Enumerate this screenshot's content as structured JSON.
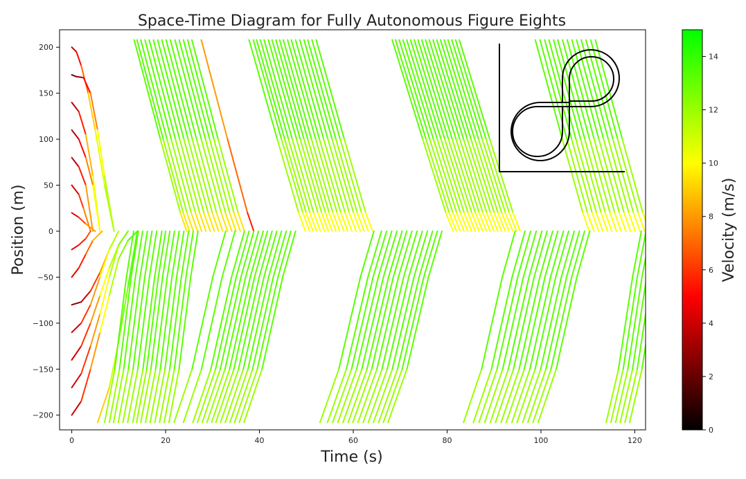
{
  "chart_data": {
    "type": "line",
    "title": "Space-Time Diagram for Fully Autonomous Figure Eights",
    "xlabel": "Time (s)",
    "ylabel": "Position (m)",
    "xlim": [
      -2.6,
      122.3
    ],
    "ylim": [
      -216,
      219
    ],
    "x_ticks": [
      0,
      20,
      40,
      60,
      80,
      100,
      120
    ],
    "y_ticks": [
      200,
      150,
      100,
      50,
      0,
      -50,
      -100,
      -150,
      -200
    ],
    "grid": false,
    "legend": "none",
    "colorbar": {
      "label": "Velocity (m/s)",
      "range": [
        0,
        15
      ],
      "ticks": [
        0,
        2,
        4,
        6,
        8,
        10,
        12,
        14
      ],
      "colors": [
        "#000000",
        "#ff0000",
        "#ffff00",
        "#00ff00"
      ]
    },
    "inset": "figure-eight track",
    "series": [
      {
        "x": [
          0,
          1,
          2,
          3.5,
          5,
          7,
          9
        ],
        "y": [
          200,
          195,
          180,
          150,
          110,
          50,
          0
        ],
        "v": [
          3,
          4,
          6,
          8,
          10,
          11,
          12
        ]
      },
      {
        "x": [
          0,
          1,
          2.5,
          4,
          5.5,
          7,
          9
        ],
        "y": [
          170,
          168,
          167,
          150,
          110,
          60,
          0
        ],
        "v": [
          2,
          2,
          4,
          6,
          9,
          11,
          12
        ]
      },
      {
        "x": [
          0,
          1.5,
          3,
          4.5,
          6
        ],
        "y": [
          140,
          130,
          105,
          60,
          0
        ],
        "v": [
          3,
          4,
          7,
          10,
          11
        ]
      },
      {
        "x": [
          0,
          1.5,
          3,
          4.5,
          6
        ],
        "y": [
          110,
          100,
          80,
          50,
          0
        ],
        "v": [
          3,
          4,
          6,
          9,
          11
        ]
      },
      {
        "x": [
          0,
          1.5,
          3,
          4.5
        ],
        "y": [
          80,
          70,
          50,
          0
        ],
        "v": [
          3,
          4,
          7,
          9
        ]
      },
      {
        "x": [
          0,
          1.5,
          2.5,
          4
        ],
        "y": [
          50,
          40,
          25,
          0
        ],
        "v": [
          3,
          5,
          7,
          8
        ]
      },
      {
        "x": [
          0,
          1.5,
          3,
          5
        ],
        "y": [
          20,
          15,
          8,
          0
        ],
        "v": [
          4,
          5,
          7,
          9
        ]
      },
      {
        "x": [
          0,
          1.5,
          3,
          4
        ],
        "y": [
          -20,
          -15,
          -8,
          0
        ],
        "v": [
          4,
          5,
          6,
          7
        ]
      },
      {
        "x": [
          0,
          1.5,
          3,
          4.5,
          6.5
        ],
        "y": [
          -50,
          -40,
          -25,
          -10,
          0
        ],
        "v": [
          4,
          5,
          6,
          8,
          9
        ]
      },
      {
        "x": [
          0,
          2,
          4,
          6,
          8,
          10
        ],
        "y": [
          -80,
          -77,
          -65,
          -45,
          -20,
          0
        ],
        "v": [
          2,
          3,
          5,
          7,
          9,
          11
        ]
      },
      {
        "x": [
          0,
          2,
          4,
          6,
          8,
          10
        ],
        "y": [
          -110,
          -100,
          -80,
          -50,
          -20,
          0
        ],
        "v": [
          3,
          5,
          7,
          9,
          11,
          12
        ]
      },
      {
        "x": [
          0,
          2,
          4,
          6,
          8,
          10,
          12
        ],
        "y": [
          -140,
          -125,
          -100,
          -70,
          -40,
          -15,
          0
        ],
        "v": [
          3,
          5,
          7,
          9,
          11,
          12,
          13
        ]
      },
      {
        "x": [
          0,
          2,
          4,
          6,
          8,
          10,
          12
        ],
        "y": [
          -170,
          -155,
          -125,
          -90,
          -50,
          -15,
          0
        ],
        "v": [
          3,
          5,
          7,
          9,
          11,
          12,
          13
        ]
      },
      {
        "x": [
          0,
          2,
          4,
          6,
          8,
          10,
          12,
          14
        ],
        "y": [
          -200,
          -185,
          -150,
          -110,
          -70,
          -30,
          -10,
          0
        ],
        "v": [
          3,
          5,
          7,
          9,
          11,
          12,
          13,
          14
        ]
      },
      {
        "x": [
          5.5,
          8,
          10,
          12,
          14
        ],
        "y": [
          -208,
          -170,
          -120,
          -60,
          0
        ],
        "v": [
          8,
          10,
          12,
          13,
          14
        ]
      }
    ],
    "waves": [
      {
        "band": "upper",
        "starts": [
          13.3,
          13.9,
          14.7,
          15.6,
          16.5,
          17.4,
          18.3,
          19.2,
          20.1,
          21.0,
          22.0,
          22.9,
          23.8,
          24.7,
          25.6
        ],
        "duration": 11.2,
        "tail_starts": [
          27.6
        ],
        "tail_vel": 8
      },
      {
        "band": "upper",
        "starts": [
          37.8,
          38.7,
          39.4,
          40.2,
          41.0,
          41.9,
          42.7,
          43.5,
          44.3,
          45.1,
          46.0,
          46.8,
          47.7,
          48.6,
          49.5,
          50.3,
          51.2,
          52.1
        ],
        "duration": 12.0,
        "tail_starts": [],
        "tail_vel": 9
      },
      {
        "band": "upper",
        "starts": [
          68.3,
          69.0,
          69.8,
          70.6,
          71.4,
          72.2,
          73.0,
          73.8,
          74.6,
          75.4,
          76.2,
          77.0,
          77.8,
          78.6,
          79.4,
          80.2,
          81.0,
          81.8,
          82.6
        ],
        "duration": 13.0,
        "tail_starts": [],
        "tail_vel": 9
      },
      {
        "band": "upper",
        "starts": [
          98.8,
          99.8,
          100.8,
          101.7,
          102.7,
          103.6,
          104.6,
          105.6,
          106.6,
          107.6,
          108.6,
          109.6,
          110.6,
          111.6
        ],
        "duration": 11.5,
        "tail_starts": [],
        "tail_vel": 9
      },
      {
        "band": "lower",
        "starts": [
          7.0,
          8.0,
          8.9,
          9.9,
          10.9,
          11.9,
          13.0,
          13.8,
          14.7,
          15.7,
          16.7,
          17.7,
          18.7,
          19.7,
          20.7
        ],
        "duration": 6.2,
        "tail_starts": [],
        "tail_vel": 13
      },
      {
        "band": "lower",
        "starts": [
          21.8,
          23.8,
          25.8,
          26.8,
          27.8,
          28.8,
          29.8,
          30.7,
          31.7,
          32.7,
          33.7,
          34.7,
          35.7,
          36.7
        ],
        "duration": 11.0,
        "tail_starts": [],
        "tail_vel": 13
      },
      {
        "band": "lower",
        "starts": [
          52.9,
          54.5,
          55.6,
          56.7,
          57.8,
          58.9,
          59.9,
          61.0,
          62.1,
          63.2,
          64.3,
          65.4,
          66.4,
          67.4
        ],
        "duration": 11.5,
        "tail_starts": [],
        "tail_vel": 13
      },
      {
        "band": "lower",
        "starts": [
          83.5,
          85.6,
          86.8,
          88.0,
          89.2,
          90.3,
          91.5,
          92.6,
          93.8,
          94.9,
          96.1,
          97.2,
          98.3,
          99.4
        ],
        "duration": 11.0,
        "tail_starts": [],
        "tail_vel": 13
      },
      {
        "band": "lower",
        "starts": [
          113.9,
          114.9,
          115.9,
          116.9,
          117.9,
          118.9
        ],
        "duration": 7.5,
        "tail_starts": [],
        "tail_vel": 13
      }
    ]
  }
}
